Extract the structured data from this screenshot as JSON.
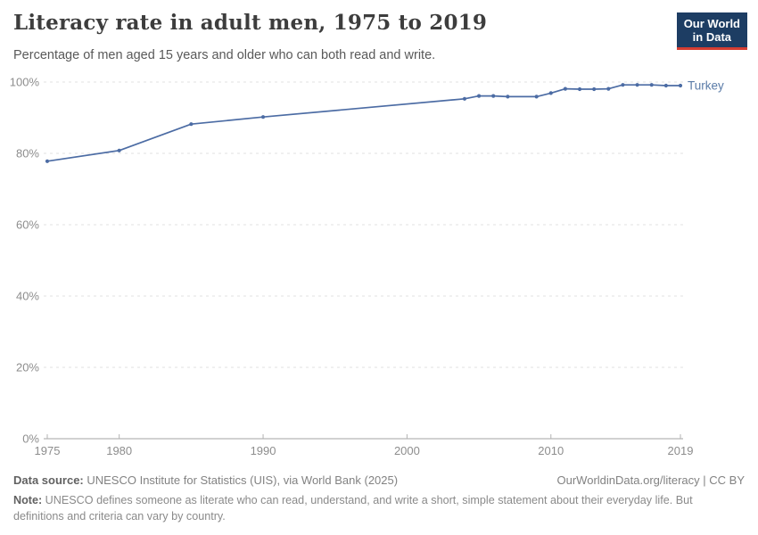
{
  "header": {
    "title": "Literacy rate in adult men, 1975 to 2019",
    "subtitle": "Percentage of men aged 15 years and older who can both read and write.",
    "logo": {
      "line1": "Our World",
      "line2": "in Data"
    }
  },
  "chart_data": {
    "type": "line",
    "title": "Literacy rate in adult men, 1975 to 2019",
    "xlabel": "",
    "ylabel": "",
    "xlim": [
      1975,
      2019
    ],
    "ylim": [
      0,
      100
    ],
    "xticks": [
      1975,
      1980,
      1990,
      2000,
      2010,
      2019
    ],
    "yticks": [
      0,
      20,
      40,
      60,
      80,
      100
    ],
    "ytick_suffix": "%",
    "grid": "horizontal-dashed",
    "legend_position": "end-of-line-label",
    "x": [
      1975,
      1980,
      1985,
      1990,
      2004,
      2005,
      2006,
      2007,
      2009,
      2010,
      2011,
      2012,
      2013,
      2014,
      2015,
      2016,
      2017,
      2018,
      2019
    ],
    "series": [
      {
        "name": "Turkey",
        "values": [
          77.8,
          80.8,
          88.2,
          90.2,
          95.3,
          96.1,
          96.1,
          95.9,
          95.9,
          96.9,
          98.1,
          98.0,
          98.0,
          98.1,
          99.2,
          99.2,
          99.2,
          99.0,
          99.0
        ]
      }
    ]
  },
  "footer": {
    "datasource_label": "Data source:",
    "datasource_text": " UNESCO Institute for Statistics (UIS), via World Bank (2025)",
    "link": "OurWorldinData.org/literacy | CC BY",
    "note_label": "Note:",
    "note_text": " UNESCO defines someone as literate who can read, understand, and write a short, simple statement about their everyday life. But definitions and criteria can vary by country."
  },
  "colors": {
    "line": "#4C6CA4",
    "entity_label": "#5B7CA8",
    "grid": "#e1e1e1",
    "axis": "#a3a3a3",
    "tick_text": "#8d8d8d",
    "logo_bg": "#1d3d63",
    "logo_stripe": "#d53d32"
  }
}
